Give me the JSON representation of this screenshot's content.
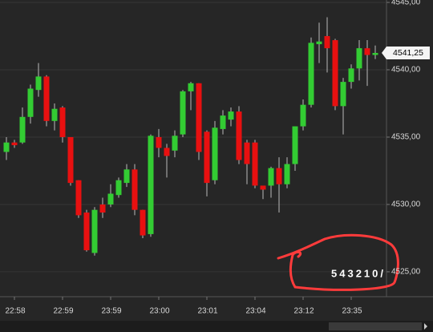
{
  "chart_data": {
    "type": "candlestick",
    "categories": [
      null,
      "22:58",
      null,
      null,
      null,
      null,
      null,
      "22:59",
      null,
      null,
      null,
      null,
      null,
      "23:59",
      null,
      null,
      null,
      null,
      null,
      "23:00",
      null,
      null,
      null,
      null,
      null,
      "23:01",
      null,
      null,
      null,
      null,
      null,
      "23:04",
      null,
      null,
      null,
      null,
      null,
      "23:12",
      null,
      null,
      null,
      null,
      null,
      "23:35",
      null,
      null,
      null
    ],
    "open": [
      4533.9,
      4534.6,
      4534.6,
      4536.5,
      4538.5,
      4539.5,
      4536.2,
      4537.2,
      4535.0,
      4531.8,
      4529.4,
      4526.4,
      4530.0,
      4530.0,
      4530.7,
      4531.6,
      4532.6,
      4529.6,
      4527.8,
      4535.0,
      4534.2,
      4534.0,
      4535.2,
      4538.4,
      4539.0,
      4535.4,
      4531.8,
      4535.6,
      4536.3,
      4536.9,
      4534.6,
      4534.6,
      4531.4,
      4531.4,
      4532.7,
      4531.5,
      4533.0,
      4535.8,
      4537.4,
      4541.9,
      4542.5,
      4542.2,
      4537.3,
      4539.1,
      4540.1,
      4541.6,
      4541.1
    ],
    "high": [
      4535.0,
      4534.8,
      4537.2,
      4538.9,
      4540.5,
      4539.6,
      4537.5,
      4537.3,
      4535.0,
      4531.8,
      4529.6,
      4529.8,
      4530.5,
      4531.5,
      4532.0,
      4533.0,
      4533.0,
      4529.6,
      4535.2,
      4535.6,
      4534.5,
      4535.5,
      4538.5,
      4539.1,
      4539.0,
      4535.5,
      4536.2,
      4537.0,
      4537.2,
      4537.3,
      4534.8,
      4534.8,
      4531.4,
      4532.8,
      4533.5,
      4533.5,
      4535.8,
      4537.8,
      4542.4,
      4543.5,
      4543.9,
      4542.3,
      4539.4,
      4540.4,
      4542.2,
      4542.2,
      4541.8
    ],
    "low": [
      4533.3,
      4534.2,
      4534.5,
      4536.0,
      4538.0,
      4535.8,
      4535.5,
      4534.6,
      4531.4,
      4529.0,
      4526.5,
      4526.2,
      4529.0,
      4529.8,
      4530.5,
      4531.3,
      4529.2,
      4527.5,
      4527.6,
      4533.5,
      4532.0,
      4533.5,
      4535.0,
      4537.0,
      4533.3,
      4530.6,
      4531.5,
      4535.2,
      4535.8,
      4533.0,
      4531.5,
      4531.2,
      4530.4,
      4530.5,
      4529.4,
      4531.2,
      4532.5,
      4535.5,
      4537.2,
      4540.5,
      4539.8,
      4537.0,
      4535.2,
      4538.6,
      4539.2,
      4538.8,
      4540.8
    ],
    "close": [
      4534.6,
      4534.4,
      4536.5,
      4538.6,
      4539.5,
      4536.2,
      4537.1,
      4535.0,
      4531.6,
      4529.2,
      4526.6,
      4529.6,
      4529.4,
      4530.8,
      4531.8,
      4532.6,
      4529.6,
      4527.7,
      4535.1,
      4534.2,
      4533.6,
      4535.1,
      4538.4,
      4539.0,
      4533.9,
      4531.6,
      4535.7,
      4536.6,
      4536.9,
      4533.3,
      4533.0,
      4531.4,
      4531.1,
      4532.7,
      4531.5,
      4533.0,
      4535.8,
      4537.4,
      4542.0,
      4542.1,
      4541.6,
      4537.3,
      4539.1,
      4540.1,
      4541.6,
      4541.1,
      4541.25
    ],
    "up_color": "#33cc33",
    "down_color": "#e81010",
    "ylim": [
      4523.15,
      4545.18
    ],
    "yticks": [
      {
        "value": 4525,
        "label": "4525,00"
      },
      {
        "value": 4530,
        "label": "4530,00"
      },
      {
        "value": 4535,
        "label": "4535,00"
      },
      {
        "value": 4540,
        "label": "4540,00"
      },
      {
        "value": 4545,
        "label": "4545,00"
      }
    ],
    "grid": true,
    "current_price": {
      "value": 4541.25,
      "label": "4541,25"
    },
    "annotation": "543210/"
  }
}
